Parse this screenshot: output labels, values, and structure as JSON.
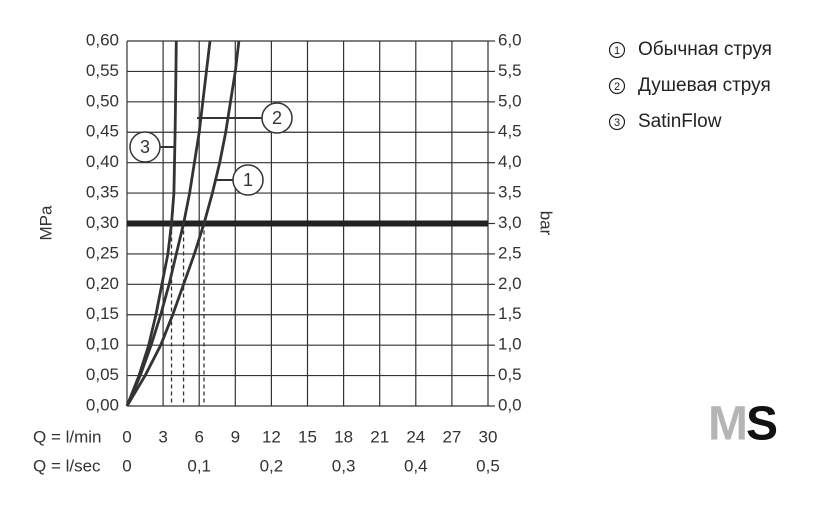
{
  "chart_data": {
    "type": "line",
    "y_label": "MPa",
    "y2_label": "bar",
    "x_label": "Q = l/min",
    "x2_label": "Q = l/sec",
    "xlim": [
      0,
      30
    ],
    "xticks": [
      0,
      3,
      6,
      9,
      12,
      15,
      18,
      21,
      24,
      27,
      30
    ],
    "x2lim": [
      0,
      0.5
    ],
    "x2ticks": [
      0,
      {
        "value": 0.1,
        "label": "0,1"
      },
      {
        "value": 0.2,
        "label": "0,2"
      },
      {
        "value": 0.3,
        "label": "0,3"
      },
      {
        "value": 0.4,
        "label": "0,4"
      },
      {
        "value": 0.5,
        "label": "0,5"
      }
    ],
    "ylim": [
      0,
      0.6
    ],
    "yticks": [
      {
        "value": 0,
        "label": "0,00"
      },
      {
        "value": 0.05,
        "label": "0,05"
      },
      {
        "value": 0.1,
        "label": "0,10"
      },
      {
        "value": 0.15,
        "label": "0,15"
      },
      {
        "value": 0.2,
        "label": "0,20"
      },
      {
        "value": 0.25,
        "label": "0,25"
      },
      {
        "value": 0.3,
        "label": "0,30"
      },
      {
        "value": 0.35,
        "label": "0,35"
      },
      {
        "value": 0.4,
        "label": "0,40"
      },
      {
        "value": 0.45,
        "label": "0,45"
      },
      {
        "value": 0.5,
        "label": "0,50"
      },
      {
        "value": 0.55,
        "label": "0,55"
      },
      {
        "value": 0.6,
        "label": "0,60"
      }
    ],
    "y2lim": [
      0,
      6
    ],
    "y2ticks": [
      {
        "value": 0,
        "label": "0,0"
      },
      {
        "value": 0.5,
        "label": "0,5"
      },
      {
        "value": 1,
        "label": "1,0"
      },
      {
        "value": 1.5,
        "label": "1,5"
      },
      {
        "value": 2,
        "label": "2,0"
      },
      {
        "value": 2.5,
        "label": "2,5"
      },
      {
        "value": 3,
        "label": "3,0"
      },
      {
        "value": 3.5,
        "label": "3,5"
      },
      {
        "value": 4,
        "label": "4,0"
      },
      {
        "value": 4.5,
        "label": "4,5"
      },
      {
        "value": 5,
        "label": "5,0"
      },
      {
        "value": 5.5,
        "label": "5,5"
      },
      {
        "value": 6,
        "label": "6,0"
      }
    ],
    "grid": true,
    "reference_line": 0.3,
    "drop_lines": [
      3.7,
      4.7,
      6.4
    ],
    "series": [
      {
        "name": "Обычная струя",
        "label": "1",
        "color": "#333333",
        "x": [
          0,
          1.5,
          2.8,
          3.8,
          4.7,
          5.6,
          6.4,
          7.1,
          7.7,
          8.2,
          8.6,
          9.0,
          9.3
        ],
        "values": [
          0,
          0.05,
          0.1,
          0.15,
          0.2,
          0.25,
          0.3,
          0.35,
          0.4,
          0.45,
          0.5,
          0.55,
          0.6
        ]
      },
      {
        "name": "Душевая струя",
        "label": "2",
        "color": "#333333",
        "x": [
          0,
          1.1,
          2.0,
          2.8,
          3.5,
          4.1,
          4.7,
          5.2,
          5.6,
          6.0,
          6.3,
          6.6,
          6.9
        ],
        "values": [
          0,
          0.05,
          0.1,
          0.15,
          0.2,
          0.25,
          0.3,
          0.35,
          0.4,
          0.45,
          0.5,
          0.55,
          0.6
        ]
      },
      {
        "name": "SatinFlow",
        "label": "3",
        "color": "#333333",
        "x": [
          0,
          1.0,
          1.8,
          2.4,
          2.9,
          3.4,
          3.7,
          3.9,
          4.0,
          4.05,
          4.1
        ],
        "values": [
          0,
          0.05,
          0.1,
          0.15,
          0.2,
          0.25,
          0.3,
          0.35,
          0.45,
          0.52,
          0.6
        ]
      }
    ],
    "logo": [
      "M",
      "S"
    ]
  }
}
